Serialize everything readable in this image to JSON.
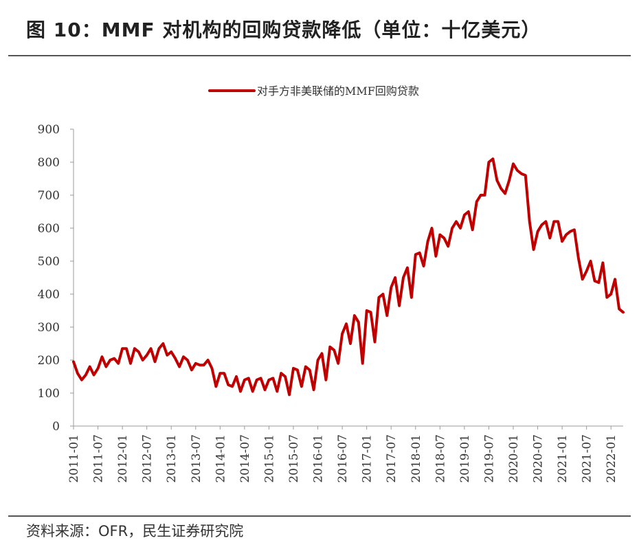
{
  "header": {
    "title": "图 10：MMF 对机构的回购贷款降低（单位：十亿美元）"
  },
  "footer": {
    "source": "资料来源：OFR，民生证券研究院"
  },
  "colors": {
    "series": "#c00000",
    "axis": "#999999",
    "rule": "#555555"
  },
  "chart_data": {
    "type": "line",
    "title": "",
    "xlabel": "",
    "ylabel": "",
    "ylim": [
      0,
      900
    ],
    "yticks": [
      0,
      100,
      200,
      300,
      400,
      500,
      600,
      700,
      800,
      900
    ],
    "xlim": [
      "2011-01",
      "2022-04"
    ],
    "xticks": [
      "2011-01",
      "2011-07",
      "2012-01",
      "2012-07",
      "2013-01",
      "2013-07",
      "2014-01",
      "2014-07",
      "2015-01",
      "2015-07",
      "2016-01",
      "2016-07",
      "2017-01",
      "2017-07",
      "2018-01",
      "2018-07",
      "2019-01",
      "2019-07",
      "2020-01",
      "2020-07",
      "2021-01",
      "2021-07",
      "2022-01"
    ],
    "grid": false,
    "legend_position": "top-center",
    "series": [
      {
        "name": "对手方非美联储的MMF回购贷款",
        "color": "#c00000",
        "x": [
          "2011-01",
          "2011-02",
          "2011-03",
          "2011-04",
          "2011-05",
          "2011-06",
          "2011-07",
          "2011-08",
          "2011-09",
          "2011-10",
          "2011-11",
          "2011-12",
          "2012-01",
          "2012-02",
          "2012-03",
          "2012-04",
          "2012-05",
          "2012-06",
          "2012-07",
          "2012-08",
          "2012-09",
          "2012-10",
          "2012-11",
          "2012-12",
          "2013-01",
          "2013-02",
          "2013-03",
          "2013-04",
          "2013-05",
          "2013-06",
          "2013-07",
          "2013-08",
          "2013-09",
          "2013-10",
          "2013-11",
          "2013-12",
          "2014-01",
          "2014-02",
          "2014-03",
          "2014-04",
          "2014-05",
          "2014-06",
          "2014-07",
          "2014-08",
          "2014-09",
          "2014-10",
          "2014-11",
          "2014-12",
          "2015-01",
          "2015-02",
          "2015-03",
          "2015-04",
          "2015-05",
          "2015-06",
          "2015-07",
          "2015-08",
          "2015-09",
          "2015-10",
          "2015-11",
          "2015-12",
          "2016-01",
          "2016-02",
          "2016-03",
          "2016-04",
          "2016-05",
          "2016-06",
          "2016-07",
          "2016-08",
          "2016-09",
          "2016-10",
          "2016-11",
          "2016-12",
          "2017-01",
          "2017-02",
          "2017-03",
          "2017-04",
          "2017-05",
          "2017-06",
          "2017-07",
          "2017-08",
          "2017-09",
          "2017-10",
          "2017-11",
          "2017-12",
          "2018-01",
          "2018-02",
          "2018-03",
          "2018-04",
          "2018-05",
          "2018-06",
          "2018-07",
          "2018-08",
          "2018-09",
          "2018-10",
          "2018-11",
          "2018-12",
          "2019-01",
          "2019-02",
          "2019-03",
          "2019-04",
          "2019-05",
          "2019-06",
          "2019-07",
          "2019-08",
          "2019-09",
          "2019-10",
          "2019-11",
          "2019-12",
          "2020-01",
          "2020-02",
          "2020-03",
          "2020-04",
          "2020-05",
          "2020-06",
          "2020-07",
          "2020-08",
          "2020-09",
          "2020-10",
          "2020-11",
          "2020-12",
          "2021-01",
          "2021-02",
          "2021-03",
          "2021-04",
          "2021-05",
          "2021-06",
          "2021-07",
          "2021-08",
          "2021-09",
          "2021-10",
          "2021-11",
          "2021-12",
          "2022-01",
          "2022-02",
          "2022-03",
          "2022-04"
        ],
        "values": [
          195,
          160,
          140,
          155,
          180,
          155,
          175,
          210,
          180,
          200,
          205,
          190,
          235,
          235,
          190,
          235,
          225,
          200,
          215,
          235,
          195,
          235,
          250,
          215,
          225,
          205,
          180,
          210,
          200,
          170,
          190,
          185,
          185,
          200,
          175,
          120,
          160,
          160,
          125,
          120,
          150,
          105,
          140,
          145,
          105,
          140,
          145,
          110,
          140,
          145,
          105,
          160,
          150,
          95,
          175,
          170,
          120,
          180,
          170,
          110,
          200,
          220,
          140,
          240,
          230,
          190,
          280,
          310,
          250,
          335,
          315,
          190,
          350,
          345,
          255,
          390,
          400,
          335,
          420,
          450,
          365,
          450,
          480,
          390,
          520,
          525,
          485,
          560,
          600,
          515,
          580,
          570,
          545,
          600,
          620,
          600,
          640,
          650,
          595,
          680,
          700,
          700,
          800,
          810,
          745,
          720,
          705,
          745,
          795,
          775,
          765,
          760,
          620,
          535,
          590,
          610,
          620,
          570,
          620,
          620,
          560,
          580,
          590,
          595,
          510,
          445,
          470,
          500,
          440,
          435,
          495,
          390,
          400,
          445,
          355,
          345
        ]
      }
    ]
  }
}
